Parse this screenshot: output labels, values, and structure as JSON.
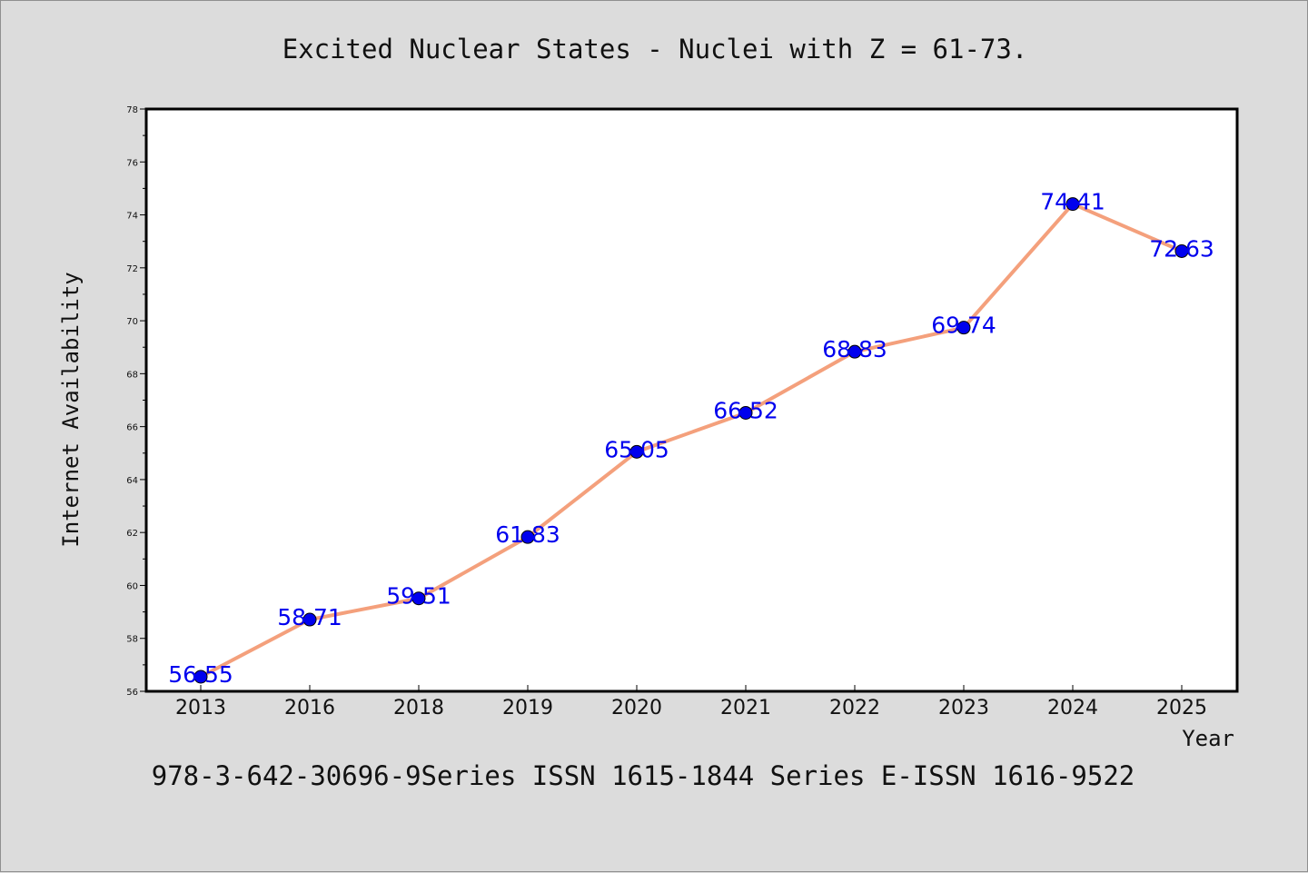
{
  "chart_data": {
    "type": "line",
    "title": "Excited Nuclear States - Nuclei with Z = 61-73.",
    "xlabel": "Year",
    "ylabel": "Internet Availability",
    "footer": "978-3-642-30696-9Series ISSN 1615-1844 Series E-ISSN 1616-9522",
    "categories": [
      "2013",
      "2016",
      "2018",
      "2019",
      "2020",
      "2021",
      "2022",
      "2023",
      "2024",
      "2025"
    ],
    "series": [
      {
        "values": [
          56.55,
          58.71,
          59.51,
          61.83,
          65.05,
          66.52,
          68.83,
          69.74,
          74.41,
          72.63
        ]
      }
    ],
    "data_labels": [
      "56.55",
      "58.71",
      "59.51",
      "61.83",
      "65.05",
      "66.52",
      "68.83",
      "69.74",
      "74.41",
      "72.63"
    ],
    "ylim": [
      56,
      78
    ],
    "yticks": [
      "56",
      "58",
      "60",
      "62",
      "64",
      "66",
      "68",
      "70",
      "72",
      "74",
      "76",
      "78"
    ],
    "grid": false,
    "colors": {
      "line": "#f4a07c",
      "marker": "#0000ee",
      "label": "#0000ee",
      "background": "#dcdcdc",
      "plot_area": "#ffffff"
    }
  }
}
